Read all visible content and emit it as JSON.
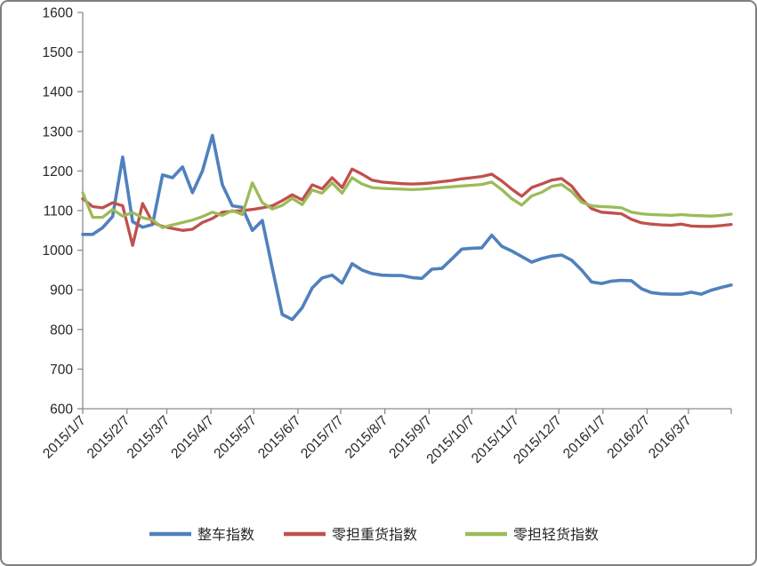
{
  "chart_data": {
    "type": "line",
    "title": "",
    "xlabel": "",
    "ylabel": "",
    "ylim": [
      600,
      1600
    ],
    "y_tick_step": 100,
    "y_tick_labels": [
      "600",
      "700",
      "800",
      "900",
      "1000",
      "1100",
      "1200",
      "1300",
      "1400",
      "1500",
      "1600"
    ],
    "x_tick_labels": [
      "2015/1/7",
      "2015/2/7",
      "2015/3/7",
      "2015/4/7",
      "2015/5/7",
      "2015/6/7",
      "2015/7/7",
      "2015/8/7",
      "2015/9/7",
      "2015/10/7",
      "2015/11/7",
      "2015/12/7",
      "2016/1/7",
      "2016/2/7",
      "2016/3/7"
    ],
    "grid": false,
    "legend_position": "bottom",
    "x": [
      "2015/1/7",
      "2015/1/14",
      "2015/1/21",
      "2015/1/28",
      "2015/2/4",
      "2015/2/11",
      "2015/2/18",
      "2015/2/25",
      "2015/3/4",
      "2015/3/11",
      "2015/3/18",
      "2015/3/25",
      "2015/4/1",
      "2015/4/8",
      "2015/4/15",
      "2015/4/22",
      "2015/4/29",
      "2015/5/6",
      "2015/5/13",
      "2015/5/20",
      "2015/5/27",
      "2015/6/3",
      "2015/6/10",
      "2015/6/17",
      "2015/6/24",
      "2015/7/1",
      "2015/7/8",
      "2015/7/15",
      "2015/7/22",
      "2015/7/29",
      "2015/8/5",
      "2015/8/12",
      "2015/8/19",
      "2015/8/26",
      "2015/9/2",
      "2015/9/9",
      "2015/9/16",
      "2015/9/23",
      "2015/9/30",
      "2015/10/7",
      "2015/10/14",
      "2015/10/21",
      "2015/10/28",
      "2015/11/4",
      "2015/11/11",
      "2015/11/18",
      "2015/11/25",
      "2015/12/2",
      "2015/12/9",
      "2015/12/16",
      "2015/12/23",
      "2015/12/30",
      "2016/1/6",
      "2016/1/13",
      "2016/1/20",
      "2016/1/27",
      "2016/2/3",
      "2016/2/10",
      "2016/2/17",
      "2016/2/24",
      "2016/3/2",
      "2016/3/9",
      "2016/3/16",
      "2016/3/23",
      "2016/3/30",
      "2016/4/6"
    ],
    "series": [
      {
        "name": "整车指数",
        "color": "#4F81BD",
        "stroke_width": 3.6,
        "values": [
          1040,
          1040,
          1057,
          1085,
          1235,
          1072,
          1058,
          1065,
          1190,
          1183,
          1210,
          1145,
          1200,
          1290,
          1165,
          1112,
          1108,
          1050,
          1075,
          955,
          838,
          825,
          855,
          905,
          930,
          937,
          917,
          966,
          950,
          941,
          937,
          936,
          936,
          931,
          929,
          952,
          954,
          978,
          1003,
          1005,
          1006,
          1038,
          1010,
          998,
          984,
          970,
          979,
          985,
          988,
          975,
          950,
          920,
          916,
          922,
          924,
          923,
          903,
          893,
          890,
          889,
          889,
          894,
          889,
          899,
          906,
          912
        ]
      },
      {
        "name": "零担重货指数",
        "color": "#C0504D",
        "stroke_width": 3.3,
        "values": [
          1130,
          1110,
          1107,
          1120,
          1112,
          1012,
          1118,
          1070,
          1060,
          1055,
          1050,
          1053,
          1070,
          1080,
          1096,
          1098,
          1100,
          1103,
          1107,
          1112,
          1125,
          1140,
          1127,
          1165,
          1155,
          1183,
          1158,
          1205,
          1192,
          1177,
          1172,
          1170,
          1168,
          1167,
          1168,
          1170,
          1173,
          1176,
          1180,
          1183,
          1186,
          1192,
          1175,
          1154,
          1136,
          1158,
          1167,
          1177,
          1181,
          1162,
          1130,
          1105,
          1096,
          1094,
          1092,
          1078,
          1069,
          1066,
          1064,
          1063,
          1066,
          1061,
          1060,
          1060,
          1062,
          1065
        ]
      },
      {
        "name": "零担轻货指数",
        "color": "#9BBB59",
        "stroke_width": 3.3,
        "values": [
          1145,
          1083,
          1083,
          1103,
          1086,
          1095,
          1082,
          1076,
          1057,
          1064,
          1070,
          1076,
          1085,
          1096,
          1088,
          1100,
          1090,
          1170,
          1120,
          1104,
          1113,
          1131,
          1115,
          1152,
          1144,
          1170,
          1144,
          1183,
          1167,
          1158,
          1156,
          1155,
          1154,
          1153,
          1154,
          1156,
          1158,
          1160,
          1162,
          1164,
          1166,
          1172,
          1153,
          1130,
          1114,
          1137,
          1146,
          1161,
          1166,
          1148,
          1121,
          1112,
          1110,
          1109,
          1107,
          1096,
          1092,
          1090,
          1089,
          1088,
          1090,
          1088,
          1087,
          1086,
          1088,
          1091
        ]
      }
    ],
    "legend": [
      {
        "label": "整车指数",
        "color": "#4F81BD"
      },
      {
        "label": "零担重货指数",
        "color": "#C0504D"
      },
      {
        "label": "零担轻货指数",
        "color": "#9BBB59"
      }
    ],
    "axis_color": "#8c8c8c"
  }
}
